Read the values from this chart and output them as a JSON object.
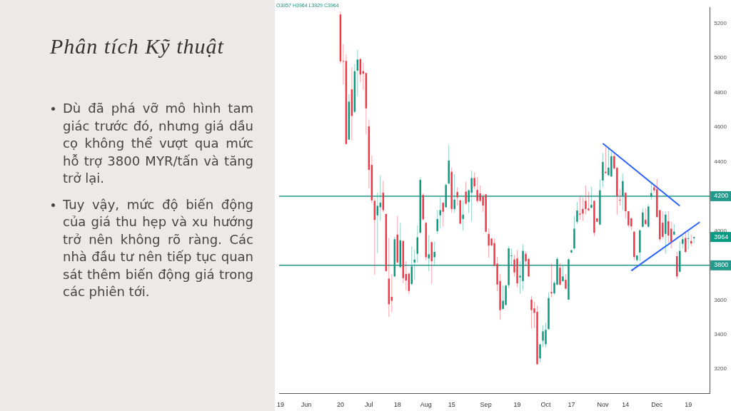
{
  "chart_data": {
    "type": "candlestick",
    "title": "Phân tích Kỹ thuật",
    "subtitle": "O3957 H3964 L3929 C3964",
    "annotations": [
      "Dù đã phá vỡ mô hình tam giác trước đó, nhưng giá dầu cọ không thể vượt qua mức hỗ trợ 3800 MYR/tấn và tăng trở lại.",
      "Tuy vậy, mức độ biến động của giá thu hẹp và xu hướng trở nên không rõ ràng. Các nhà đầu tư nên tiếp tục quan sát thêm biến động giá trong các phiên tới.",
      "3964"
    ],
    "categories": [
      "19",
      null,
      null,
      null,
      null,
      null,
      null,
      null,
      null,
      "Jun",
      null,
      null,
      null,
      null,
      null,
      null,
      null,
      null,
      null,
      null,
      null,
      "20",
      null,
      null,
      null,
      null,
      null,
      null,
      null,
      null,
      null,
      "Jul",
      null,
      null,
      null,
      null,
      null,
      null,
      null,
      null,
      null,
      "18",
      null,
      null,
      null,
      null,
      null,
      null,
      null,
      null,
      null,
      "Aug",
      null,
      null,
      null,
      null,
      null,
      null,
      null,
      null,
      "15",
      null,
      null,
      null,
      null,
      null,
      null,
      null,
      null,
      null,
      null,
      null,
      "Sep",
      null,
      null,
      null,
      null,
      null,
      null,
      null,
      null,
      null,
      null,
      "19",
      null,
      null,
      null,
      null,
      null,
      null,
      null,
      null,
      null,
      "Oct",
      null,
      null,
      null,
      null,
      null,
      null,
      null,
      null,
      "17",
      null,
      null,
      null,
      null,
      null,
      null,
      null,
      null,
      null,
      null,
      "Nov",
      null,
      null,
      null,
      null,
      null,
      null,
      null,
      "14",
      null,
      null,
      null,
      null,
      null,
      null,
      null,
      null,
      null,
      null,
      "Dec",
      null,
      null,
      null,
      null,
      null,
      null,
      null,
      null,
      null,
      null,
      "19",
      null,
      null,
      null,
      null,
      null,
      null,
      null
    ],
    "ohlc": [
      null,
      null,
      null,
      null,
      null,
      null,
      null,
      null,
      null,
      null,
      null,
      null,
      null,
      null,
      null,
      null,
      null,
      null,
      null,
      null,
      null,
      [
        5251,
        5269,
        4966,
        4980
      ],
      [
        4982,
        5080,
        4845,
        4978
      ],
      [
        4982,
        5020,
        4500,
        4502
      ],
      [
        4527,
        4791,
        4525,
        4747
      ],
      [
        4818,
        4946,
        4523,
        4664
      ],
      [
        4688,
        4966,
        4680,
        4923
      ],
      [
        4926,
        5047,
        4778,
        4990
      ],
      [
        4993,
        5000,
        4859,
        4903
      ],
      [
        4923,
        4973,
        4816,
        4908
      ],
      [
        4912,
        4915,
        4556,
        4708
      ],
      [
        4603,
        4644,
        4247,
        4352
      ],
      [
        4381,
        4435,
        4160,
        4176
      ],
      [
        4173,
        4187,
        3746,
        4062
      ],
      [
        4089,
        4220,
        3871,
        4144
      ],
      [
        4136,
        4321,
        4059,
        4162
      ],
      [
        4220,
        4287,
        4106,
        4119
      ],
      [
        4097,
        4100,
        3763,
        3767
      ],
      [
        3723,
        3958,
        3501,
        3575
      ],
      [
        3618,
        3750,
        3528,
        3595
      ],
      [
        3736,
        3965,
        3730,
        3951
      ],
      [
        3978,
        4086,
        3810,
        3817
      ],
      [
        3790,
        4045,
        3784,
        3945
      ],
      [
        3941,
        3945,
        3696,
        3726
      ],
      [
        3750,
        3824,
        3656,
        3712
      ],
      [
        3752,
        3757,
        3633,
        3652
      ],
      [
        3692,
        3911,
        3683,
        3794
      ],
      [
        3817,
        3891,
        3716,
        3833
      ],
      [
        3867,
        4032,
        3817,
        3962
      ],
      [
        3989,
        4310,
        3985,
        4294
      ],
      [
        4207,
        4216,
        4059,
        4066
      ],
      [
        4046,
        4050,
        3830,
        3847
      ],
      [
        3840,
        3974,
        3766,
        3864
      ],
      [
        3934,
        3938,
        3693,
        3824
      ],
      [
        3847,
        3938,
        3804,
        3878
      ],
      [
        3998,
        4119,
        3981,
        4068
      ],
      [
        4089,
        4193,
        4012,
        4119
      ],
      [
        4162,
        4166,
        4025,
        4110
      ],
      [
        4136,
        4274,
        4133,
        4265
      ],
      [
        4274,
        4496,
        4267,
        4406
      ],
      [
        4341,
        4365,
        4103,
        4126
      ],
      [
        4126,
        4328,
        4103,
        4180
      ],
      [
        4224,
        4251,
        4146,
        4193
      ],
      [
        4176,
        4180,
        4039,
        4041
      ],
      [
        4068,
        4176,
        4001,
        4093
      ],
      [
        4227,
        4283,
        4150,
        4157
      ],
      [
        4166,
        4240,
        4103,
        4234
      ],
      [
        4220,
        4348,
        4055,
        4305
      ],
      [
        4305,
        4337,
        4240,
        4257
      ],
      [
        4236,
        4310,
        4162,
        4173
      ],
      [
        4216,
        4261,
        4166,
        4173
      ],
      [
        4196,
        4214,
        4109,
        4146
      ],
      [
        4211,
        4214,
        3992,
        3994
      ],
      [
        3982,
        4015,
        3844,
        3914
      ],
      [
        3955,
        3958,
        3911,
        3915
      ],
      [
        3929,
        3955,
        3795,
        3797
      ],
      [
        3810,
        3848,
        3649,
        3689
      ],
      [
        3709,
        3750,
        3484,
        3541
      ],
      [
        3548,
        3683,
        3544,
        3595
      ],
      [
        3571,
        3689,
        3568,
        3683
      ],
      [
        3685,
        3911,
        3669,
        3898
      ],
      [
        3853,
        3898,
        3797,
        3857
      ],
      [
        3834,
        3861,
        3736,
        3759
      ],
      [
        3840,
        3888,
        3673,
        3696
      ],
      [
        3730,
        3824,
        3636,
        3740
      ],
      [
        3709,
        3921,
        3656,
        3884
      ],
      [
        3867,
        3880,
        3797,
        3824
      ],
      [
        3837,
        3844,
        3732,
        3736
      ],
      [
        3602,
        3622,
        3434,
        3541
      ],
      [
        3551,
        3589,
        3437,
        3525
      ],
      [
        3531,
        3566,
        3226,
        3228
      ],
      [
        3262,
        3347,
        3239,
        3343
      ],
      [
        3364,
        3454,
        3327,
        3418
      ],
      [
        3344,
        3468,
        3327,
        3427
      ],
      [
        3431,
        3642,
        3427,
        3611
      ],
      [
        3646,
        3810,
        3616,
        3638
      ],
      [
        3638,
        3710,
        3629,
        3699
      ],
      [
        3689,
        3848,
        3683,
        3837
      ],
      [
        3786,
        3813,
        3683,
        3689
      ],
      [
        3709,
        3797,
        3703,
        3736
      ],
      [
        3716,
        3750,
        3662,
        3665
      ],
      [
        3602,
        3840,
        3600,
        3835
      ],
      [
        3874,
        3891,
        3871,
        3887
      ],
      [
        3898,
        4086,
        3891,
        4012
      ],
      [
        4052,
        4166,
        4039,
        4117
      ],
      [
        4099,
        4200,
        4063,
        4093
      ],
      [
        4126,
        4193,
        4055,
        4099
      ],
      [
        4173,
        4261,
        4093,
        4126
      ],
      [
        4129,
        4227,
        4113,
        4119
      ],
      [
        4133,
        4254,
        4130,
        4150
      ],
      [
        4173,
        4176,
        3969,
        3988
      ],
      [
        4072,
        4072,
        4050,
        4052
      ],
      [
        4036,
        4297,
        4032,
        4234
      ],
      [
        4291,
        4449,
        4251,
        4398
      ],
      [
        4341,
        4482,
        4331,
        4334
      ],
      [
        4321,
        4475,
        4318,
        4365
      ],
      [
        4314,
        4455,
        4311,
        4431
      ],
      [
        4431,
        4442,
        4354,
        4361
      ],
      [
        4364,
        4368,
        4093,
        4200
      ],
      [
        4180,
        4240,
        4146,
        4177
      ],
      [
        4200,
        4332,
        4119,
        4287
      ],
      [
        4220,
        4222,
        4072,
        4113
      ],
      [
        4113,
        4115,
        4019,
        4032
      ],
      [
        4072,
        4075,
        4005,
        4025
      ],
      [
        3995,
        3997,
        3830,
        3848
      ],
      [
        3830,
        3860,
        3824,
        3857
      ],
      [
        3874,
        4008,
        3824,
        4003
      ],
      [
        4023,
        4130,
        4019,
        4106
      ],
      [
        4063,
        4130,
        4032,
        4039
      ],
      [
        4023,
        4153,
        4019,
        4140
      ],
      [
        4197,
        4274,
        4180,
        4218
      ],
      [
        4251,
        4261,
        4220,
        4234
      ],
      [
        4240,
        4301,
        4077,
        4079
      ],
      [
        4119,
        4122,
        3938,
        3951
      ],
      [
        4046,
        4113,
        3951,
        3965
      ],
      [
        3982,
        4113,
        3867,
        4093
      ],
      [
        4055,
        4113,
        3931,
        3972
      ],
      [
        4012,
        4052,
        3898,
        3938
      ],
      [
        3978,
        4039,
        3974,
        3995
      ],
      [
        3853,
        3878,
        3723,
        3736
      ],
      [
        3763,
        3938,
        3759,
        3884
      ],
      [
        3925,
        3972,
        3898,
        3951
      ],
      [
        3958,
        3988,
        3871,
        3878
      ],
      [
        3954,
        3998,
        3891,
        3957
      ],
      [
        3941,
        3978,
        3911,
        3927
      ],
      [
        3957,
        3964,
        3929,
        3964
      ],
      null,
      null,
      null,
      null,
      null
    ],
    "series": [
      {
        "type": "line",
        "color": "#2962ff",
        "values": [
          null,
          null,
          null,
          null,
          null,
          null,
          null,
          null,
          null,
          null,
          null,
          null,
          null,
          null,
          null,
          null,
          null,
          null,
          null,
          null,
          null,
          null,
          null,
          null,
          null,
          null,
          null,
          null,
          null,
          null,
          null,
          null,
          null,
          null,
          null,
          null,
          null,
          null,
          null,
          null,
          null,
          null,
          null,
          null,
          null,
          null,
          null,
          null,
          null,
          null,
          null,
          null,
          null,
          null,
          null,
          null,
          null,
          null,
          null,
          null,
          null,
          null,
          null,
          null,
          null,
          null,
          null,
          null,
          null,
          null,
          null,
          null,
          null,
          null,
          null,
          null,
          null,
          null,
          null,
          null,
          null,
          null,
          null,
          null,
          null,
          null,
          null,
          null,
          null,
          null,
          null,
          null,
          null,
          null,
          null,
          null,
          null,
          null,
          null,
          null,
          null,
          null,
          null,
          null,
          null,
          null,
          null,
          null,
          null,
          null,
          null,
          null,
          null,
          4505,
          null,
          null,
          null,
          null,
          null,
          null,
          null,
          null,
          null,
          null,
          null,
          null,
          null,
          null,
          null,
          null,
          null,
          null,
          null,
          null,
          null,
          null,
          null,
          null,
          null,
          null,
          4144,
          null,
          null,
          null,
          null,
          null,
          null,
          null,
          null,
          null,
          null
        ]
      },
      {
        "type": "line",
        "color": "#2962ff",
        "values": [
          null,
          null,
          null,
          null,
          null,
          null,
          null,
          null,
          null,
          null,
          null,
          null,
          null,
          null,
          null,
          null,
          null,
          null,
          null,
          null,
          null,
          null,
          null,
          null,
          null,
          null,
          null,
          null,
          null,
          null,
          null,
          null,
          null,
          null,
          null,
          null,
          null,
          null,
          null,
          null,
          null,
          null,
          null,
          null,
          null,
          null,
          null,
          null,
          null,
          null,
          null,
          null,
          null,
          null,
          null,
          null,
          null,
          null,
          null,
          null,
          null,
          null,
          null,
          null,
          null,
          null,
          null,
          null,
          null,
          null,
          null,
          null,
          null,
          null,
          null,
          null,
          null,
          null,
          null,
          null,
          null,
          null,
          null,
          null,
          null,
          null,
          null,
          null,
          null,
          null,
          null,
          null,
          null,
          null,
          null,
          null,
          null,
          null,
          null,
          null,
          null,
          null,
          null,
          null,
          null,
          null,
          null,
          null,
          null,
          null,
          null,
          null,
          null,
          null,
          null,
          null,
          null,
          null,
          null,
          null,
          null,
          null,
          null,
          3769,
          null,
          null,
          null,
          null,
          null,
          null,
          null,
          null,
          null,
          null,
          null,
          null,
          null,
          null,
          null,
          null,
          null,
          null,
          null,
          null,
          null,
          null,
          null,
          4050,
          null,
          null,
          null
        ]
      }
    ],
    "ylim": [
      3060,
      5290
    ],
    "yticks": [
      3200,
      3400,
      3600,
      3800,
      4000,
      4200,
      4400,
      4600,
      4800,
      5000,
      5200
    ],
    "ref_lines": [
      {
        "axis": "y",
        "value": 4200,
        "label": "4200",
        "color": "#22998a"
      },
      {
        "axis": "y",
        "value": 3800,
        "label": "3800",
        "color": "#22998a"
      }
    ]
  }
}
